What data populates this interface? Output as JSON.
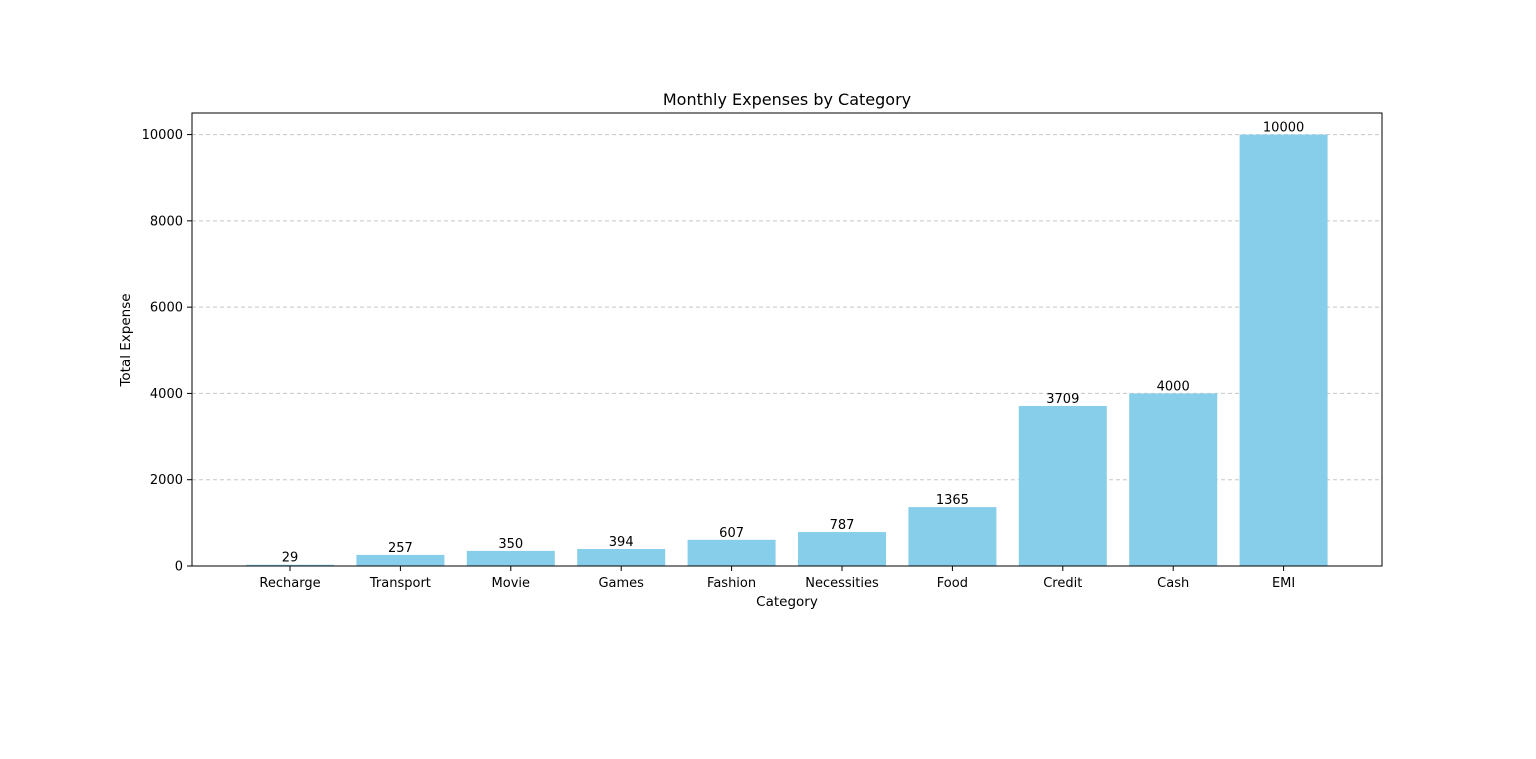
{
  "chart_data": {
    "type": "bar",
    "title": "Monthly Expenses by Category",
    "xlabel": "Category",
    "ylabel": "Total Expense",
    "categories": [
      "Recharge",
      "Transport",
      "Movie",
      "Games",
      "Fashion",
      "Necessities",
      "Food",
      "Credit",
      "Cash",
      "EMI"
    ],
    "values": [
      29,
      257,
      350,
      394,
      607,
      787,
      1365,
      3709,
      4000,
      10000
    ],
    "data_labels": [
      "29",
      "257",
      "350",
      "394",
      "607",
      "787",
      "1365",
      "3709",
      "4000",
      "10000"
    ],
    "ylim": [
      0,
      10500
    ],
    "yticks": [
      0,
      2000,
      4000,
      6000,
      8000,
      10000
    ],
    "ytick_labels": [
      "0",
      "2000",
      "4000",
      "6000",
      "8000",
      "10000"
    ],
    "grid": "y-dashed",
    "legend": "none",
    "colors": {
      "bar": "#87ceeb",
      "grid": "#c8c8c8",
      "axis": "#000000"
    }
  }
}
